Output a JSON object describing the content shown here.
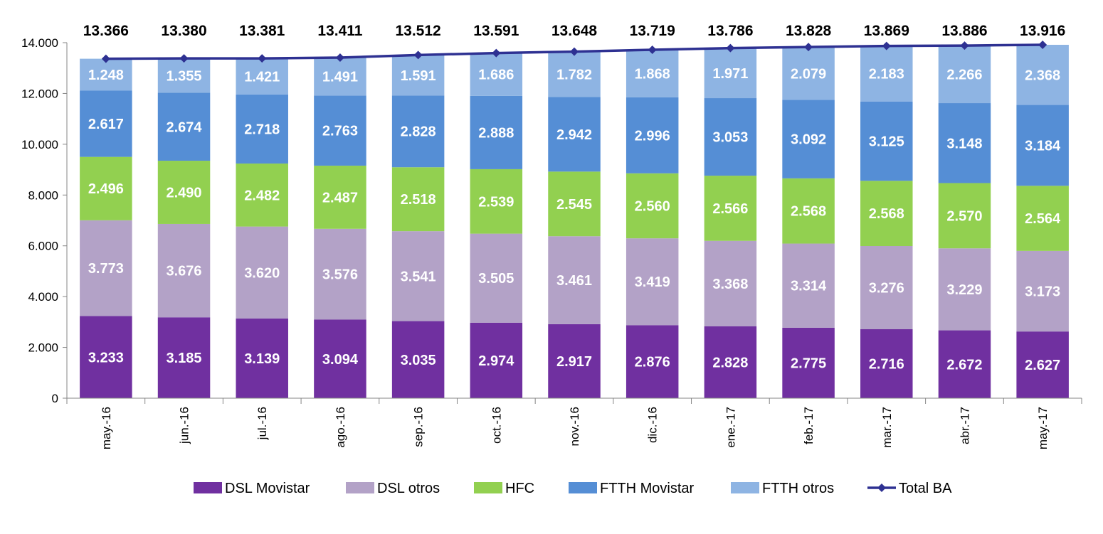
{
  "chart_data": {
    "type": "bar",
    "stacked": true,
    "categories": [
      "may.-16",
      "jun.-16",
      "jul.-16",
      "ago.-16",
      "sep.-16",
      "oct.-16",
      "nov.-16",
      "dic.-16",
      "ene.-17",
      "feb.-17",
      "mar.-17",
      "abr.-17",
      "may.-17"
    ],
    "categories_label_rotation": "vertical",
    "series": [
      {
        "name": "DSL Movistar",
        "color": "#7030A0",
        "label_color": "#ffffff",
        "values": [
          3233,
          3185,
          3139,
          3094,
          3035,
          2974,
          2917,
          2876,
          2828,
          2775,
          2716,
          2672,
          2627
        ],
        "labels": [
          "3.233",
          "3.185",
          "3.139",
          "3.094",
          "3.035",
          "2.974",
          "2.917",
          "2.876",
          "2.828",
          "2.775",
          "2.716",
          "2.672",
          "2.627"
        ]
      },
      {
        "name": "DSL otros",
        "color": "#B3A2C7",
        "label_color": "#ffffff",
        "values": [
          3773,
          3676,
          3620,
          3576,
          3541,
          3505,
          3461,
          3419,
          3368,
          3314,
          3276,
          3229,
          3173
        ],
        "labels": [
          "3.773",
          "3.676",
          "3.620",
          "3.576",
          "3.541",
          "3.505",
          "3.461",
          "3.419",
          "3.368",
          "3.314",
          "3.276",
          "3.229",
          "3.173"
        ]
      },
      {
        "name": "HFC",
        "color": "#92D050",
        "label_color": "#ffffff",
        "values": [
          2496,
          2490,
          2482,
          2487,
          2518,
          2539,
          2545,
          2560,
          2566,
          2568,
          2568,
          2570,
          2564
        ],
        "labels": [
          "2.496",
          "2.490",
          "2.482",
          "2.487",
          "2.518",
          "2.539",
          "2.545",
          "2.560",
          "2.566",
          "2.568",
          "2.568",
          "2.570",
          "2.564"
        ]
      },
      {
        "name": "FTTH Movistar",
        "color": "#558ED5",
        "label_color": "#ffffff",
        "values": [
          2617,
          2674,
          2718,
          2763,
          2828,
          2888,
          2942,
          2996,
          3053,
          3092,
          3125,
          3148,
          3184
        ],
        "labels": [
          "2.617",
          "2.674",
          "2.718",
          "2.763",
          "2.828",
          "2.888",
          "2.942",
          "2.996",
          "3.053",
          "3.092",
          "3.125",
          "3.148",
          "3.184"
        ]
      },
      {
        "name": "FTTH otros",
        "color": "#8EB4E3",
        "label_color": "#ffffff",
        "values": [
          1248,
          1355,
          1421,
          1491,
          1591,
          1686,
          1782,
          1868,
          1971,
          2079,
          2183,
          2266,
          2368
        ],
        "labels": [
          "1.248",
          "1.355",
          "1.421",
          "1.491",
          "1.591",
          "1.686",
          "1.782",
          "1.868",
          "1.971",
          "2.079",
          "2.183",
          "2.266",
          "2.368"
        ]
      }
    ],
    "line_series": {
      "name": "Total BA",
      "color": "#2E3192",
      "label_color": "#000000",
      "values": [
        13366,
        13380,
        13381,
        13411,
        13512,
        13591,
        13648,
        13719,
        13786,
        13828,
        13869,
        13886,
        13916
      ],
      "labels": [
        "13.366",
        "13.380",
        "13.381",
        "13.411",
        "13.512",
        "13.591",
        "13.648",
        "13.719",
        "13.786",
        "13.828",
        "13.869",
        "13.886",
        "13.916"
      ]
    },
    "y_ticks": [
      0,
      2000,
      4000,
      6000,
      8000,
      10000,
      12000,
      14000
    ],
    "y_tick_labels": [
      "0",
      "2.000",
      "4.000",
      "6.000",
      "8.000",
      "10.000",
      "12.000",
      "14.000"
    ],
    "ylim": [
      0,
      14000
    ],
    "grid": false,
    "legend_position": "bottom"
  }
}
